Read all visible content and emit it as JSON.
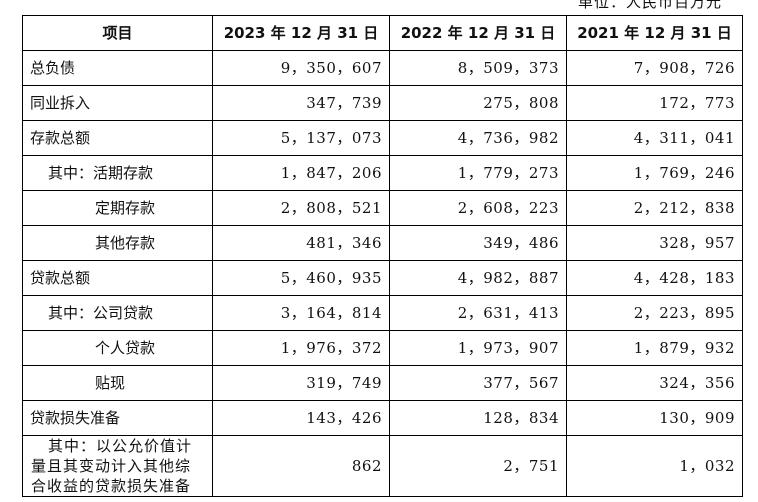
{
  "unit_note": "单位：人民币百万元",
  "table": {
    "headers": [
      "项目",
      "2023 年 12 月 31 日",
      "2022 年 12 月 31 日",
      "2021 年 12 月 31 日"
    ],
    "rows": [
      {
        "label": "总负债",
        "v2023": "9，350，607",
        "v2022": "8，509，373",
        "v2021": "7，908，726"
      },
      {
        "label": "同业拆入",
        "v2023": "347，739",
        "v2022": "275，808",
        "v2021": "172，773"
      },
      {
        "label": "存款总额",
        "v2023": "5，137，073",
        "v2022": "4，736，982",
        "v2021": "4，311，041"
      },
      {
        "label": "其中：活期存款",
        "v2023": "1，847，206",
        "v2022": "1，779，273",
        "v2021": "1，769，246"
      },
      {
        "label": "定期存款",
        "v2023": "2，808，521",
        "v2022": "2，608，223",
        "v2021": "2，212，838"
      },
      {
        "label": "其他存款",
        "v2023": "481，346",
        "v2022": "349，486",
        "v2021": "328，957"
      },
      {
        "label": "贷款总额",
        "v2023": "5，460，935",
        "v2022": "4，982，887",
        "v2021": "4，428，183"
      },
      {
        "label": "其中：公司贷款",
        "v2023": "3，164，814",
        "v2022": "2，631，413",
        "v2021": "2，223，895"
      },
      {
        "label": "个人贷款",
        "v2023": "1，976，372",
        "v2022": "1，973，907",
        "v2021": "1，879，932"
      },
      {
        "label": "贴现",
        "v2023": "319，749",
        "v2022": "377，567",
        "v2021": "324，356"
      },
      {
        "label": "贷款损失准备",
        "v2023": "143，426",
        "v2022": "128，834",
        "v2021": "130，909"
      },
      {
        "label": "其中：以公允价值计量且其变动计入其他综合收益的贷款损失准备",
        "v2023": "862",
        "v2022": "2，751",
        "v2021": "1，032"
      }
    ]
  }
}
